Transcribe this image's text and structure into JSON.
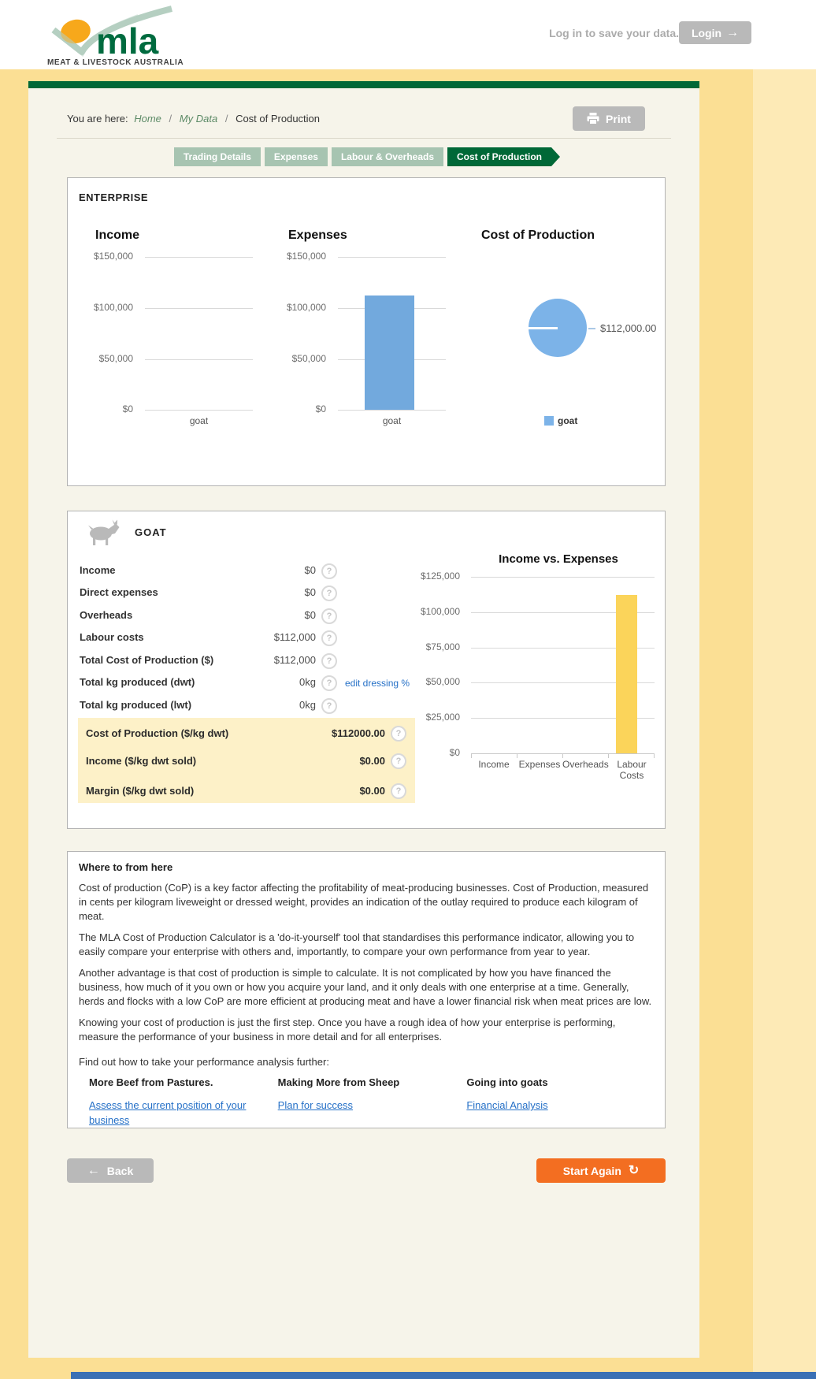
{
  "header": {
    "logo_text": "mla",
    "logo_subtext": "MEAT & LIVESTOCK AUSTRALIA",
    "login_prompt": "Log in to save your data.",
    "login_label": "Login"
  },
  "breadcrumb": {
    "prefix": "You are here:",
    "home": "Home",
    "my_data": "My Data",
    "current": "Cost of Production",
    "separator": "/"
  },
  "tabs": [
    {
      "label": "Trading Details",
      "active": false
    },
    {
      "label": "Expenses",
      "active": false
    },
    {
      "label": "Labour & Overheads",
      "active": false
    },
    {
      "label": "Cost of Production",
      "active": true
    }
  ],
  "buttons": {
    "print": "Print",
    "back": "Back",
    "start_again": "Start Again"
  },
  "icons": {
    "help": "?",
    "login_arrow": "→",
    "back_arrow": "←",
    "refresh": "↻"
  },
  "enterprise": {
    "title": "ENTERPRISE"
  },
  "chart_data": [
    {
      "type": "bar",
      "title": "Income",
      "categories": [
        "goat"
      ],
      "values": [
        0
      ],
      "yticks": [
        "$150,000",
        "$100,000",
        "$50,000",
        "$0"
      ],
      "ylim": [
        0,
        150000
      ],
      "bar_color": "#72a9dd",
      "grid": true,
      "legend": "none"
    },
    {
      "type": "bar",
      "title": "Expenses",
      "categories": [
        "goat"
      ],
      "values": [
        112000
      ],
      "yticks": [
        "$150,000",
        "$100,000",
        "$50,000",
        "$0"
      ],
      "ylim": [
        0,
        150000
      ],
      "bar_color": "#72a9dd",
      "grid": true,
      "legend": "none"
    },
    {
      "type": "pie",
      "title": "Cost of Production",
      "slices": [
        {
          "label": "goat",
          "value": 112000,
          "display": "$112,000.00"
        }
      ],
      "color": "#7cb3e8",
      "legend": "bottom"
    },
    {
      "type": "bar",
      "title": "Income vs. Expenses",
      "categories": [
        "Income",
        "Expenses",
        "Overheads",
        "Labour Costs"
      ],
      "values": [
        0,
        0,
        0,
        112000
      ],
      "yticks": [
        "$125,000",
        "$100,000",
        "$75,000",
        "$50,000",
        "$25,000",
        "$0"
      ],
      "ylim": [
        0,
        125000
      ],
      "bar_color": "#fbd45a",
      "grid": true,
      "legend": "none"
    }
  ],
  "goat": {
    "title": "GOAT",
    "rows": [
      {
        "label": "Income",
        "value": "$0"
      },
      {
        "label": "Direct expenses",
        "value": "$0"
      },
      {
        "label": "Overheads",
        "value": "$0"
      },
      {
        "label": "Labour costs",
        "value": "$112,000"
      },
      {
        "label": "Total Cost of Production ($)",
        "value": "$112,000"
      },
      {
        "label": "Total kg produced (dwt)",
        "value": "0kg"
      },
      {
        "label": "Total kg produced (lwt)",
        "value": "0kg"
      }
    ],
    "edit_link": "edit dressing %",
    "highlight_rows": [
      {
        "label": "Cost of Production ($/kg dwt)",
        "value": "$112000.00"
      },
      {
        "label": "Income ($/kg dwt sold)",
        "value": "$0.00"
      },
      {
        "label": "Margin ($/kg dwt sold)",
        "value": "$0.00"
      }
    ]
  },
  "where": {
    "heading": "Where to from here",
    "paragraphs": [
      "Cost of production (CoP) is a key factor affecting the profitability of meat-producing businesses. Cost of Production, measured in cents per kilogram liveweight or dressed weight, provides an indication of the outlay required to produce each kilogram of meat.",
      "The MLA Cost of Production Calculator is a 'do-it-yourself' tool that standardises this performance indicator, allowing you to easily compare your enterprise with others and, importantly, to compare your own performance from year to year.",
      "Another advantage is that cost of production is simple to calculate. It is not complicated by how you have financed the business, how much of it you own or how you acquire your land, and it only deals with one enterprise at a time. Generally, herds and flocks with a low CoP are more efficient at producing meat and have a lower financial risk when meat prices are low.",
      "Knowing your cost of production is just the first step. Once you have a rough idea of how your enterprise is performing, measure the performance of your business in more detail and for all enterprises."
    ],
    "prompt": "Find out how to take your performance analysis further:",
    "columns": [
      {
        "heading": "More Beef from Pastures.",
        "link": "Assess the current position of your business"
      },
      {
        "heading": "Making More from Sheep",
        "link": "Plan for success"
      },
      {
        "heading": "Going into goats",
        "link": "Financial Analysis"
      }
    ]
  },
  "colors": {
    "dark_green": "#006837",
    "sage_tab": "#a7c4b1",
    "page_yellow": "#fbdf94",
    "highlight_yellow": "#fdf1c8",
    "orange": "#f36e21",
    "link_blue": "#2570c7",
    "bar_blue": "#72a9dd",
    "pie_blue": "#7cb3e8",
    "bar_yellow": "#fbd45a",
    "footer_blue": "#3a70b5",
    "button_gray": "#b9b9b9"
  }
}
